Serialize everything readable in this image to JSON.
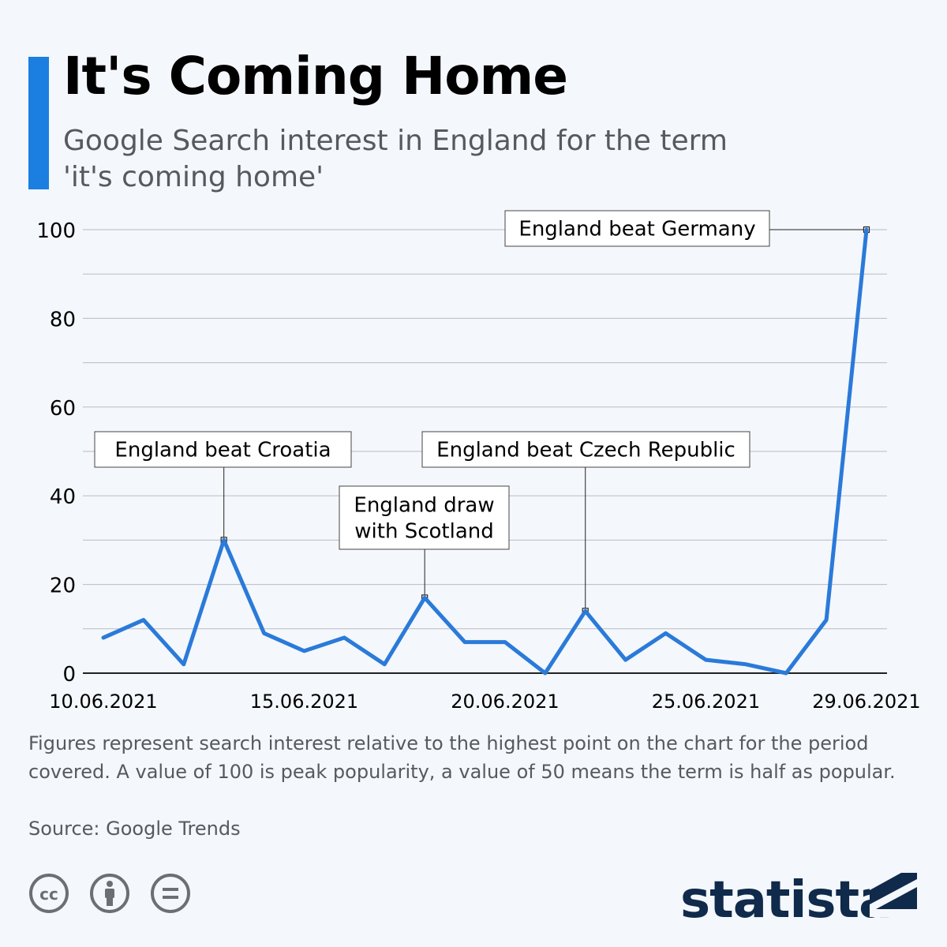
{
  "header": {
    "title": "It's Coming Home",
    "subtitle": "Google Search interest in England for the term 'it's coming home'"
  },
  "colors": {
    "accent": "#1a7fe0",
    "line": "#2a7ad9",
    "grid": "#b9bdc2",
    "brand": "#0f2a4a"
  },
  "chart_data": {
    "type": "line",
    "title": "It's Coming Home",
    "subtitle": "Google Search interest in England for the term 'it's coming home'",
    "xlabel": "",
    "ylabel": "",
    "x": [
      "10.06.2021",
      "11.06.2021",
      "12.06.2021",
      "13.06.2021",
      "14.06.2021",
      "15.06.2021",
      "16.06.2021",
      "17.06.2021",
      "18.06.2021",
      "19.06.2021",
      "20.06.2021",
      "21.06.2021",
      "22.06.2021",
      "23.06.2021",
      "24.06.2021",
      "25.06.2021",
      "26.06.2021",
      "27.06.2021",
      "28.06.2021",
      "29.06.2021"
    ],
    "values": [
      8,
      12,
      2,
      30,
      9,
      5,
      8,
      2,
      17,
      7,
      7,
      0,
      14,
      3,
      9,
      3,
      2,
      0,
      12,
      100
    ],
    "x_tick_labels": [
      "10.06.2021",
      "15.06.2021",
      "20.06.2021",
      "25.06.2021",
      "29.06.2021"
    ],
    "x_tick_index": [
      0,
      5,
      10,
      15,
      19
    ],
    "ylim": [
      0,
      100
    ],
    "y_ticks": [
      0,
      20,
      40,
      60,
      80,
      100
    ],
    "grid": true,
    "annotations": [
      {
        "text": [
          "England beat Croatia"
        ],
        "index": 3
      },
      {
        "text": [
          "England draw",
          "with Scotland"
        ],
        "index": 8
      },
      {
        "text": [
          "England beat Czech Republic"
        ],
        "index": 12
      },
      {
        "text": [
          "England beat Germany"
        ],
        "index": 19
      }
    ]
  },
  "footer": {
    "note": "Figures represent search interest relative to the highest point on the chart for the period covered. A value of 100 is peak popularity, a value of 50 means the term is half as popular.",
    "source": "Source: Google Trends",
    "license_icons": [
      "cc-icon",
      "attribution-icon",
      "no-derivatives-icon"
    ],
    "brand": "statista"
  }
}
